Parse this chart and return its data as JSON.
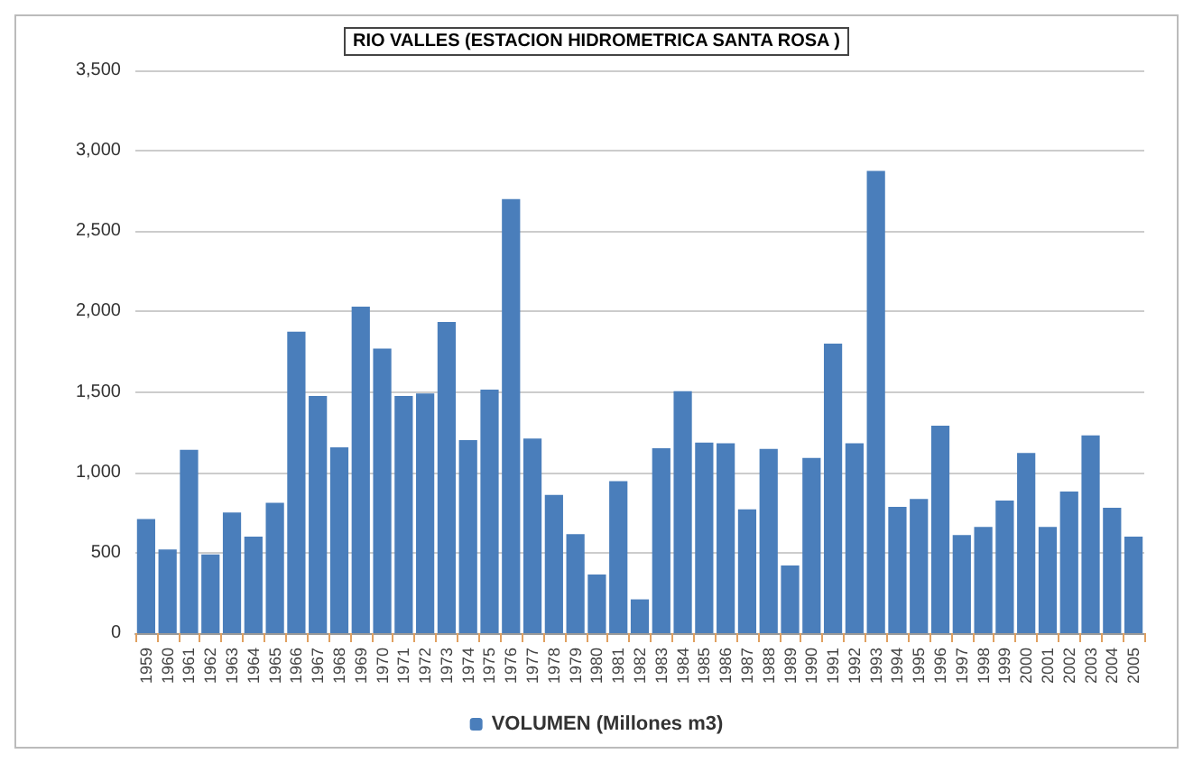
{
  "chart_data": {
    "type": "bar",
    "title": "RIO VALLES (ESTACION HIDROMETRICA SANTA ROSA )",
    "categories": [
      "1959",
      "1960",
      "1961",
      "1962",
      "1963",
      "1964",
      "1965",
      "1966",
      "1967",
      "1968",
      "1969",
      "1970",
      "1971",
      "1972",
      "1973",
      "1974",
      "1975",
      "1976",
      "1977",
      "1978",
      "1979",
      "1980",
      "1981",
      "1982",
      "1983",
      "1984",
      "1985",
      "1986",
      "1987",
      "1988",
      "1989",
      "1990",
      "1991",
      "1992",
      "1993",
      "1994",
      "1995",
      "1996",
      "1997",
      "1998",
      "1999",
      "2000",
      "2001",
      "2002",
      "2003",
      "2004",
      "2005"
    ],
    "series": [
      {
        "name": "VOLUMEN (Millones m3)",
        "color": "#4a7ebb",
        "values": [
          710,
          520,
          1140,
          490,
          750,
          600,
          810,
          1875,
          1475,
          1155,
          2030,
          1770,
          1475,
          1490,
          1935,
          1200,
          1515,
          2700,
          1210,
          860,
          615,
          365,
          945,
          210,
          1150,
          1505,
          1185,
          1180,
          770,
          1145,
          420,
          1090,
          1800,
          1180,
          2875,
          785,
          835,
          1290,
          610,
          660,
          825,
          1120,
          660,
          880,
          1230,
          780,
          600
        ]
      }
    ],
    "ylim": [
      0,
      3500
    ],
    "yticks": [
      {
        "value": 0,
        "label": "0"
      },
      {
        "value": 500,
        "label": "500"
      },
      {
        "value": 1000,
        "label": "1,000"
      },
      {
        "value": 1500,
        "label": "1,500"
      },
      {
        "value": 2000,
        "label": "2,000"
      },
      {
        "value": 2500,
        "label": "2,500"
      },
      {
        "value": 3000,
        "label": "3,000"
      },
      {
        "value": 3500,
        "label": "3,500"
      }
    ],
    "grid": "y",
    "legend": "bottom"
  }
}
